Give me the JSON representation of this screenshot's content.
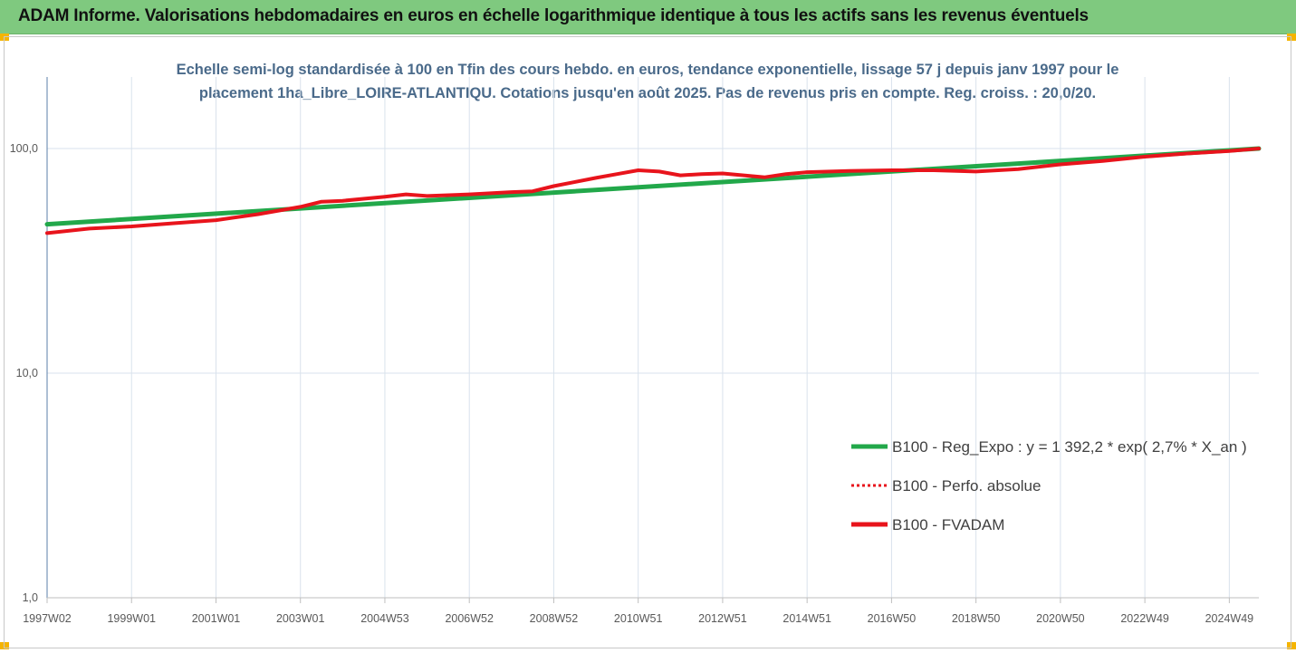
{
  "header": {
    "title": "ADAM Informe. Valorisations hebdomadaires en euros en échelle logarithmique identique à tous les actifs sans les revenus éventuels"
  },
  "chart_data": {
    "type": "line",
    "title_lines": [
      "Echelle semi-log standardisée à 100 en Tfin des cours hebdo. en euros, tendance exponentielle, lissage 57 j depuis janv 1997 pour le",
      "placement 1ha_Libre_LOIRE-ATLANTIQU.  Cotations jusqu'en août 2025. Pas de revenus pris en compte. Reg. croiss. : 20,0/20."
    ],
    "y_scale": "log",
    "ylim": [
      1,
      200
    ],
    "xlim": [
      1997.0,
      2025.7
    ],
    "grid": "vertical",
    "legend_position": "right",
    "y_ticks": [
      {
        "value": 1,
        "label": "1,0"
      },
      {
        "value": 10,
        "label": "10,0"
      },
      {
        "value": 100,
        "label": "100,0"
      }
    ],
    "x_ticks": [
      {
        "value": 1997.0,
        "label": "1997W02"
      },
      {
        "value": 1999.0,
        "label": "1999W01"
      },
      {
        "value": 2001.0,
        "label": "2001W01"
      },
      {
        "value": 2003.0,
        "label": "2003W01"
      },
      {
        "value": 2005.0,
        "label": "2004W53"
      },
      {
        "value": 2007.0,
        "label": "2006W52"
      },
      {
        "value": 2009.0,
        "label": "2008W52"
      },
      {
        "value": 2011.0,
        "label": "2010W51"
      },
      {
        "value": 2013.0,
        "label": "2012W51"
      },
      {
        "value": 2015.0,
        "label": "2014W51"
      },
      {
        "value": 2017.0,
        "label": "2016W50"
      },
      {
        "value": 2019.0,
        "label": "2018W50"
      },
      {
        "value": 2021.0,
        "label": "2020W50"
      },
      {
        "value": 2023.0,
        "label": "2022W49"
      },
      {
        "value": 2025.0,
        "label": "2024W49"
      }
    ],
    "series": [
      {
        "name": "B100 - Reg_Expo : y = 1 392,2 * exp( 2,7% *  X_an )",
        "color": "#22a84a",
        "style": "solid",
        "x": [
          1997.0,
          2025.7
        ],
        "y": [
          46.0,
          100.0
        ]
      },
      {
        "name": "B100 - Perfo. absolue",
        "color": "#e8141c",
        "style": "dotted",
        "x": [],
        "y": []
      },
      {
        "name": "B100 - FVADAM",
        "color": "#e8141c",
        "style": "solid",
        "x": [
          1997.0,
          1998.0,
          1999.0,
          2000.0,
          2001.0,
          2002.0,
          2003.0,
          2003.5,
          2004.0,
          2005.0,
          2005.5,
          2006.0,
          2007.0,
          2008.0,
          2008.5,
          2009.0,
          2009.5,
          2010.0,
          2010.5,
          2011.0,
          2011.5,
          2012.0,
          2012.5,
          2013.0,
          2013.5,
          2014.0,
          2014.5,
          2015.0,
          2016.0,
          2017.0,
          2018.0,
          2019.0,
          2020.0,
          2021.0,
          2022.0,
          2023.0,
          2024.0,
          2025.0,
          2025.7
        ],
        "y": [
          42.0,
          44.0,
          45.0,
          46.5,
          48.0,
          51.0,
          55.0,
          58.0,
          58.5,
          61.0,
          62.5,
          61.5,
          62.5,
          64.0,
          64.5,
          68.0,
          71.0,
          74.0,
          77.0,
          80.0,
          79.0,
          76.0,
          77.0,
          77.5,
          76.0,
          74.5,
          77.0,
          78.5,
          79.5,
          80.0,
          80.0,
          79.0,
          81.0,
          85.0,
          88.0,
          92.0,
          95.0,
          97.5,
          100.0
        ]
      }
    ]
  }
}
